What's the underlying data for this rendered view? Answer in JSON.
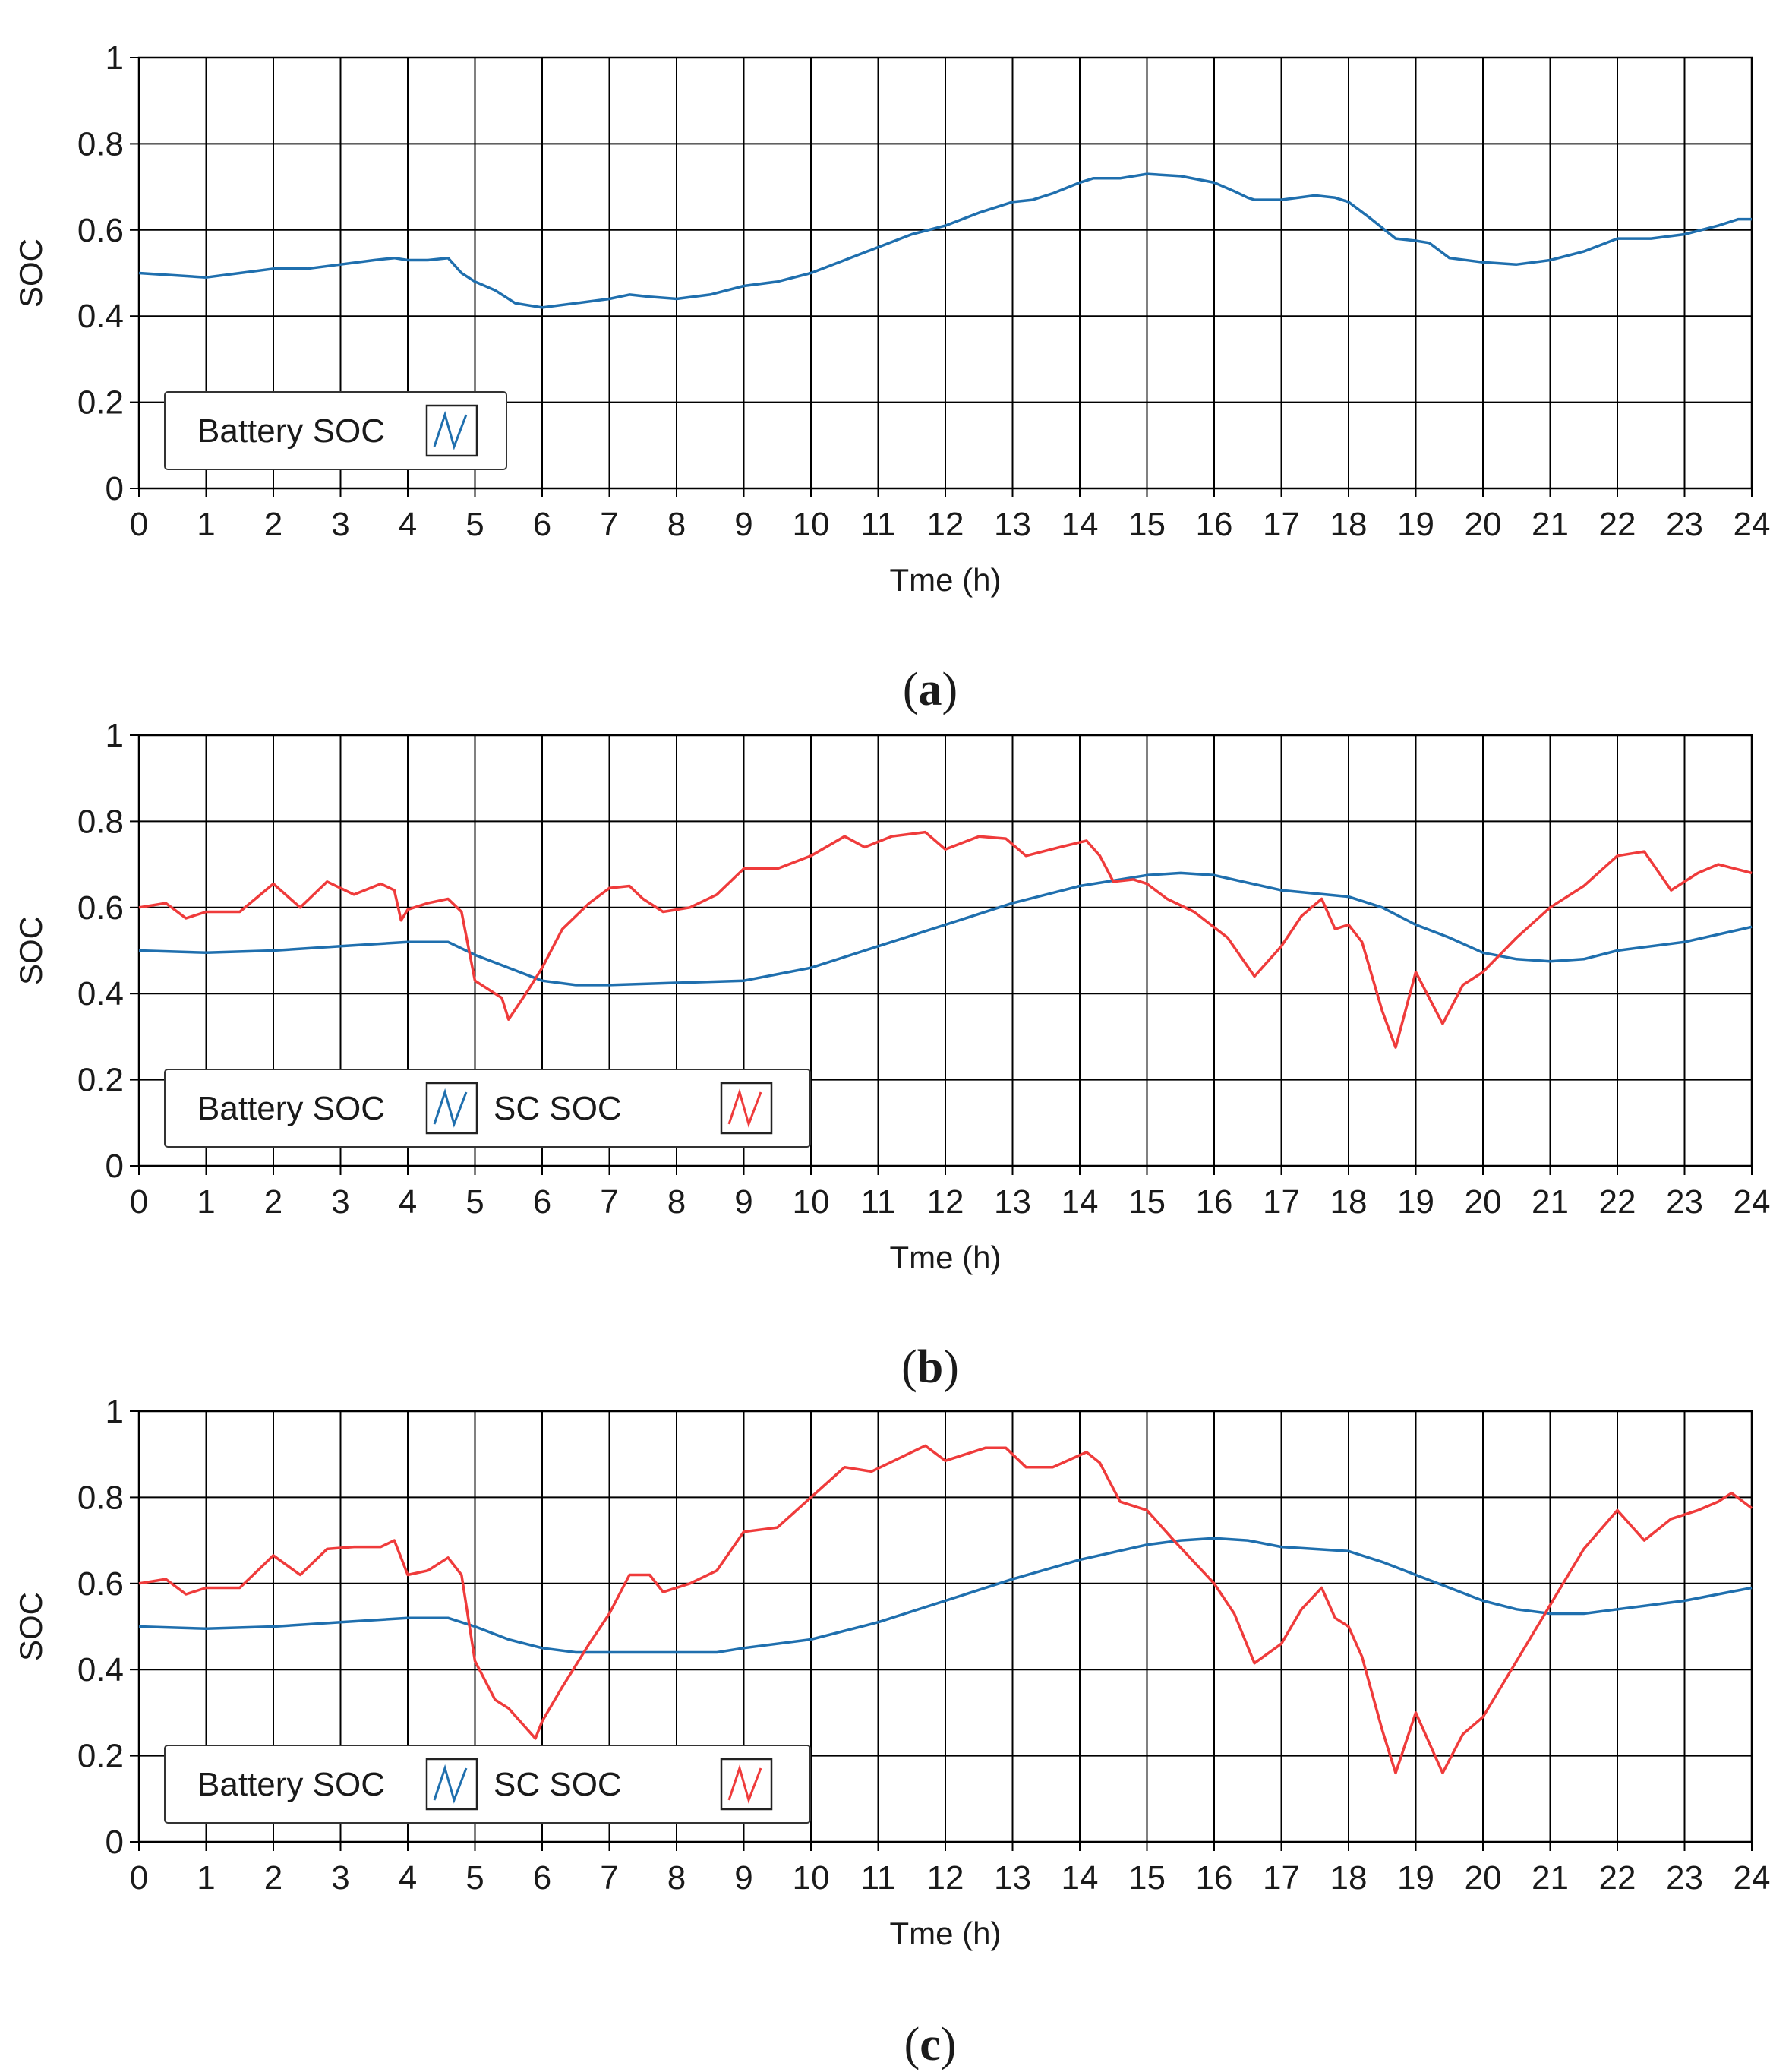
{
  "figure": {
    "colors": {
      "battery": "#1f6fae",
      "sc": "#ef3b3b",
      "grid": "#000000",
      "frame": "#000000"
    }
  },
  "chart_data": [
    {
      "id": "a",
      "type": "line",
      "caption_letter": "a",
      "xlabel": "Tme (h)",
      "ylabel": "SOC",
      "xlim": [
        0,
        24
      ],
      "ylim": [
        0,
        1
      ],
      "xticks": [
        "0",
        "1",
        "2",
        "3",
        "4",
        "5",
        "6",
        "7",
        "8",
        "9",
        "10",
        "11",
        "12",
        "13",
        "14",
        "15",
        "16",
        "17",
        "18",
        "19",
        "20",
        "21",
        "22",
        "23",
        "24"
      ],
      "yticks": [
        "0",
        "0.2",
        "0.4",
        "0.6",
        "0.8",
        "1"
      ],
      "grid": true,
      "legend": {
        "position": "bottom-left",
        "entries": [
          "Battery SOC"
        ]
      },
      "series": [
        {
          "name": "Battery SOC",
          "color": "#1f6fae",
          "x": [
            0,
            1,
            1.5,
            2,
            2.5,
            3,
            3.5,
            3.8,
            4,
            4.3,
            4.6,
            4.8,
            5,
            5.3,
            5.6,
            6,
            6.5,
            7,
            7.3,
            7.6,
            8,
            8.5,
            9,
            9.5,
            10,
            10.5,
            11,
            11.5,
            12,
            12.5,
            13,
            13.3,
            13.6,
            14,
            14.2,
            14.6,
            15,
            15.5,
            16,
            16.3,
            16.5,
            16.6,
            17,
            17.5,
            17.8,
            18,
            18.3,
            18.7,
            19,
            19.2,
            19.5,
            20,
            20.5,
            21,
            21.5,
            22,
            22.5,
            23,
            23.5,
            23.8,
            24
          ],
          "values": [
            0.5,
            0.49,
            0.5,
            0.51,
            0.51,
            0.52,
            0.53,
            0.535,
            0.53,
            0.53,
            0.535,
            0.5,
            0.48,
            0.46,
            0.43,
            0.42,
            0.43,
            0.44,
            0.45,
            0.445,
            0.44,
            0.45,
            0.47,
            0.48,
            0.5,
            0.53,
            0.56,
            0.59,
            0.61,
            0.64,
            0.665,
            0.67,
            0.685,
            0.71,
            0.72,
            0.72,
            0.73,
            0.725,
            0.71,
            0.69,
            0.675,
            0.67,
            0.67,
            0.68,
            0.675,
            0.665,
            0.63,
            0.58,
            0.575,
            0.57,
            0.535,
            0.525,
            0.52,
            0.53,
            0.55,
            0.58,
            0.58,
            0.59,
            0.61,
            0.625,
            0.625
          ]
        }
      ]
    },
    {
      "id": "b",
      "type": "line",
      "caption_letter": "b",
      "xlabel": "Tme (h)",
      "ylabel": "SOC",
      "xlim": [
        0,
        24
      ],
      "ylim": [
        0,
        1
      ],
      "xticks": [
        "0",
        "1",
        "2",
        "3",
        "4",
        "5",
        "6",
        "7",
        "8",
        "9",
        "10",
        "11",
        "12",
        "13",
        "14",
        "15",
        "16",
        "17",
        "18",
        "19",
        "20",
        "21",
        "22",
        "23",
        "24"
      ],
      "yticks": [
        "0",
        "0.2",
        "0.4",
        "0.6",
        "0.8",
        "1"
      ],
      "grid": true,
      "legend": {
        "position": "bottom-left",
        "entries": [
          "Battery SOC",
          "SC SOC"
        ]
      },
      "series": [
        {
          "name": "Battery SOC",
          "color": "#1f6fae",
          "x": [
            0,
            1,
            2,
            3,
            4,
            4.6,
            5,
            5.5,
            6,
            6.5,
            7,
            8,
            9,
            10,
            11,
            12,
            13,
            14,
            15,
            15.5,
            16,
            17,
            18,
            18.5,
            19,
            19.5,
            20,
            20.5,
            21,
            21.5,
            22,
            23,
            24
          ],
          "values": [
            0.5,
            0.495,
            0.5,
            0.51,
            0.52,
            0.52,
            0.49,
            0.46,
            0.43,
            0.42,
            0.42,
            0.425,
            0.43,
            0.46,
            0.51,
            0.56,
            0.61,
            0.65,
            0.675,
            0.68,
            0.675,
            0.64,
            0.625,
            0.6,
            0.56,
            0.53,
            0.495,
            0.48,
            0.475,
            0.48,
            0.5,
            0.52,
            0.555
          ]
        },
        {
          "name": "SC SOC",
          "color": "#ef3b3b",
          "x": [
            0,
            0.4,
            0.7,
            1,
            1.5,
            2,
            2.4,
            2.8,
            3.2,
            3.6,
            3.8,
            3.9,
            4,
            4.3,
            4.6,
            4.8,
            5,
            5.4,
            5.5,
            5.8,
            6,
            6.3,
            6.7,
            7,
            7.3,
            7.5,
            7.8,
            8.2,
            8.6,
            9,
            9.5,
            10,
            10.5,
            10.8,
            11.2,
            11.7,
            12,
            12.5,
            12.9,
            13.2,
            13.7,
            14.1,
            14.3,
            14.5,
            14.8,
            15,
            15.3,
            15.7,
            16.2,
            16.6,
            17,
            17.3,
            17.6,
            17.8,
            18,
            18.2,
            18.5,
            18.7,
            19,
            19.4,
            19.7,
            20,
            20.5,
            21,
            21.5,
            22,
            22.4,
            22.8,
            23.2,
            23.5,
            24
          ],
          "values": [
            0.6,
            0.61,
            0.575,
            0.59,
            0.59,
            0.655,
            0.6,
            0.66,
            0.63,
            0.655,
            0.64,
            0.57,
            0.595,
            0.61,
            0.62,
            0.59,
            0.43,
            0.39,
            0.34,
            0.41,
            0.46,
            0.55,
            0.61,
            0.645,
            0.65,
            0.62,
            0.59,
            0.6,
            0.63,
            0.69,
            0.69,
            0.72,
            0.765,
            0.74,
            0.765,
            0.775,
            0.735,
            0.765,
            0.76,
            0.72,
            0.74,
            0.755,
            0.72,
            0.66,
            0.665,
            0.655,
            0.62,
            0.59,
            0.53,
            0.44,
            0.51,
            0.58,
            0.62,
            0.55,
            0.56,
            0.52,
            0.36,
            0.275,
            0.45,
            0.33,
            0.42,
            0.45,
            0.53,
            0.6,
            0.65,
            0.72,
            0.73,
            0.64,
            0.68,
            0.7,
            0.68
          ]
        }
      ]
    },
    {
      "id": "c",
      "type": "line",
      "caption_letter": "c",
      "xlabel": "Tme (h)",
      "ylabel": "SOC",
      "xlim": [
        0,
        24
      ],
      "ylim": [
        0,
        1
      ],
      "xticks": [
        "0",
        "1",
        "2",
        "3",
        "4",
        "5",
        "6",
        "7",
        "8",
        "9",
        "10",
        "11",
        "12",
        "13",
        "14",
        "15",
        "16",
        "17",
        "18",
        "19",
        "20",
        "21",
        "22",
        "23",
        "24"
      ],
      "yticks": [
        "0",
        "0.2",
        "0.4",
        "0.6",
        "0.8",
        "1"
      ],
      "grid": true,
      "legend": {
        "position": "bottom-left",
        "entries": [
          "Battery SOC",
          "SC SOC"
        ]
      },
      "series": [
        {
          "name": "Battery SOC",
          "color": "#1f6fae",
          "x": [
            0,
            1,
            2,
            3,
            4,
            4.6,
            5,
            5.5,
            6,
            6.5,
            7,
            8,
            8.6,
            9,
            10,
            11,
            12,
            13,
            14,
            15,
            15.5,
            16,
            16.5,
            17,
            18,
            18.5,
            19,
            19.5,
            20,
            20.5,
            21,
            21.5,
            22,
            23,
            24
          ],
          "values": [
            0.5,
            0.495,
            0.5,
            0.51,
            0.52,
            0.52,
            0.5,
            0.47,
            0.45,
            0.44,
            0.44,
            0.44,
            0.44,
            0.45,
            0.47,
            0.51,
            0.56,
            0.61,
            0.655,
            0.69,
            0.7,
            0.705,
            0.7,
            0.685,
            0.675,
            0.65,
            0.62,
            0.59,
            0.56,
            0.54,
            0.53,
            0.53,
            0.54,
            0.56,
            0.59
          ]
        },
        {
          "name": "SC SOC",
          "color": "#ef3b3b",
          "x": [
            0,
            0.4,
            0.7,
            1,
            1.5,
            2,
            2.4,
            2.8,
            3.2,
            3.6,
            3.8,
            3.9,
            4,
            4.3,
            4.6,
            4.8,
            5,
            5.3,
            5.5,
            5.9,
            6,
            6.3,
            6.7,
            7,
            7.3,
            7.6,
            7.8,
            8.2,
            8.6,
            9,
            9.5,
            10,
            10.5,
            10.9,
            11.3,
            11.7,
            12,
            12.6,
            12.9,
            13.2,
            13.6,
            14.1,
            14.3,
            14.6,
            15,
            15.4,
            16,
            16.3,
            16.6,
            17,
            17.3,
            17.6,
            17.8,
            18,
            18.2,
            18.5,
            18.7,
            19,
            19.4,
            19.7,
            20,
            20.5,
            21,
            21.5,
            22,
            22.4,
            22.8,
            23.2,
            23.5,
            23.7,
            24
          ],
          "values": [
            0.6,
            0.61,
            0.575,
            0.59,
            0.59,
            0.665,
            0.62,
            0.68,
            0.685,
            0.685,
            0.7,
            0.66,
            0.62,
            0.63,
            0.66,
            0.62,
            0.42,
            0.33,
            0.31,
            0.24,
            0.28,
            0.36,
            0.46,
            0.53,
            0.62,
            0.62,
            0.58,
            0.6,
            0.63,
            0.72,
            0.73,
            0.8,
            0.87,
            0.86,
            0.89,
            0.92,
            0.885,
            0.915,
            0.915,
            0.87,
            0.87,
            0.905,
            0.88,
            0.79,
            0.77,
            0.7,
            0.6,
            0.53,
            0.415,
            0.46,
            0.54,
            0.59,
            0.52,
            0.5,
            0.43,
            0.26,
            0.16,
            0.3,
            0.16,
            0.25,
            0.29,
            0.42,
            0.55,
            0.68,
            0.77,
            0.7,
            0.75,
            0.77,
            0.79,
            0.81,
            0.775
          ]
        }
      ]
    }
  ]
}
